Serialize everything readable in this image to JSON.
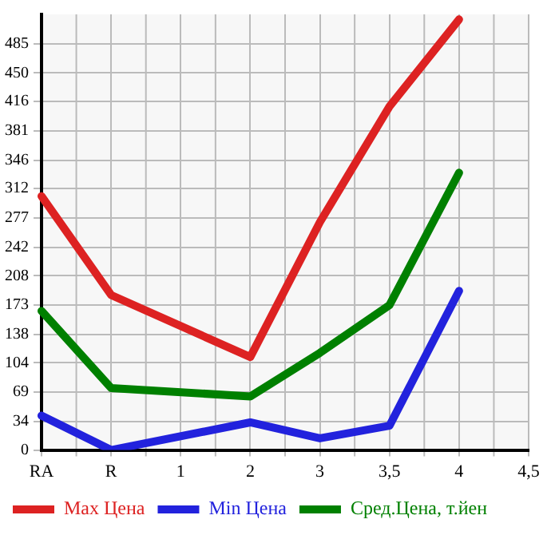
{
  "chart_data": {
    "type": "line",
    "categories": [
      "RA",
      "R",
      "1",
      "2",
      "3",
      "3,5",
      "4",
      "4,5"
    ],
    "series": [
      {
        "name": "Max Цена",
        "color": "#dd2222",
        "values": [
          303,
          185,
          null,
          111,
          272,
          410,
          514,
          null
        ]
      },
      {
        "name": "Min Цена",
        "color": "#2222dd",
        "values": [
          41,
          0,
          null,
          33,
          14,
          29,
          190,
          null
        ]
      },
      {
        "name": "Сред.Цена, т.йен",
        "color": "#008000",
        "values": [
          166,
          74,
          null,
          64,
          116,
          173,
          331,
          null
        ]
      }
    ],
    "ylim": [
      0,
      520
    ],
    "yticks": [
      0,
      34,
      69,
      104,
      138,
      173,
      208,
      242,
      277,
      312,
      346,
      381,
      416,
      450,
      485
    ],
    "grid": true,
    "legend": "bottom",
    "marker": "none",
    "line_style": "solid"
  }
}
